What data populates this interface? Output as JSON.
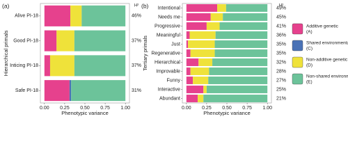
{
  "chart_data": [
    {
      "type": "bar",
      "orientation": "horizontal",
      "stacked": true,
      "panel_label": "(a)",
      "ylabel": "Hierarchical primals",
      "xlabel": "Phenotypic variance",
      "h2_header": "H²",
      "categories": [
        "Alive PI-18",
        "Good PI-18",
        "Inticing PI-18",
        "Safe PI-18"
      ],
      "series": [
        {
          "color": "#e6418d",
          "values": [
            0.32,
            0.15,
            0.07,
            0.31
          ]
        },
        {
          "color": "#4a72b6",
          "values": [
            0,
            0,
            0,
            0.02
          ]
        },
        {
          "color": "#efe23a",
          "values": [
            0.14,
            0.22,
            0.3,
            0
          ]
        },
        {
          "color": "#6cc39a",
          "values": [
            0.54,
            0.63,
            0.63,
            0.67
          ]
        }
      ],
      "h2": [
        46,
        37,
        37,
        31
      ],
      "h2_labels": [
        "46%",
        "37%",
        "37%",
        "31%"
      ],
      "xlim": [
        -0.05,
        1.05
      ],
      "xticks": [
        {
          "value": 0,
          "label": "0.00"
        },
        0.25,
        {
          "value": 0.5,
          "label": "0.50"
        },
        0.75,
        {
          "value": 1,
          "label": "1.00"
        }
      ]
    },
    {
      "type": "bar",
      "orientation": "horizontal",
      "stacked": true,
      "panel_label": "(b)",
      "ylabel": "Tertiary primals",
      "xlabel": "Phenotypic variance",
      "h2_header": "H²",
      "categories": [
        "Intentional",
        "Needs me",
        "Progressive",
        "Meaningful",
        "Just",
        "Regenerative",
        "Hierarchical",
        "Improvable",
        "Funny",
        "Interactive",
        "Abundant"
      ],
      "series": [
        {
          "name": "Additive genetic (A)",
          "color": "#e6418d",
          "values": [
            0.38,
            0.3,
            0.25,
            0.04,
            0.02,
            0.05,
            0.15,
            0.05,
            0.08,
            0.21,
            0.14
          ]
        },
        {
          "name": "Shared environmental (C)",
          "color": "#4a72b6",
          "values": [
            0,
            0,
            0,
            0,
            0,
            0,
            0,
            0,
            0,
            0,
            0
          ]
        },
        {
          "name": "Non-additive genetic (D)",
          "color": "#efe23a",
          "values": [
            0.11,
            0.15,
            0.16,
            0.32,
            0.33,
            0.3,
            0.17,
            0.23,
            0.19,
            0.04,
            0.07
          ]
        },
        {
          "name": "Non-shared environmental (E)",
          "color": "#6cc39a",
          "values": [
            0.51,
            0.55,
            0.59,
            0.64,
            0.65,
            0.65,
            0.68,
            0.72,
            0.73,
            0.75,
            0.79
          ]
        }
      ],
      "h2": [
        49,
        45,
        41,
        36,
        35,
        35,
        32,
        28,
        27,
        25,
        21
      ],
      "h2_labels": [
        "49%",
        "45%",
        "41%",
        "36%",
        "35%",
        "35%",
        "32%",
        "28%",
        "27%",
        "25%",
        "21%"
      ],
      "xlim": [
        -0.05,
        1.05
      ],
      "xticks": [
        {
          "value": 0,
          "label": "0.00"
        },
        0.25,
        {
          "value": 0.5,
          "label": "0.50"
        },
        0.75,
        {
          "value": 1,
          "label": "1.00"
        }
      ]
    }
  ]
}
